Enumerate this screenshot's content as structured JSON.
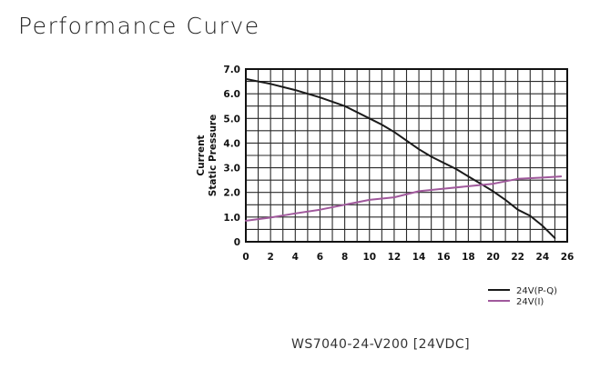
{
  "page_title": "Performance Curve",
  "model_label": "WS7040-24-V200 [24VDC]",
  "chart_data": {
    "type": "line",
    "title": "",
    "xlabel": "",
    "ylabel_lines": [
      "Current",
      "Static Pressure"
    ],
    "xlim": [
      0,
      26
    ],
    "ylim": [
      0,
      7
    ],
    "x_ticks": [
      0,
      2,
      4,
      6,
      8,
      10,
      12,
      14,
      16,
      18,
      20,
      22,
      24,
      26
    ],
    "y_ticks": [
      0,
      1.0,
      2.0,
      3.0,
      4.0,
      5.0,
      6.0,
      7.0
    ],
    "x_tick_labels": [
      "0",
      "2",
      "4",
      "6",
      "8",
      "10",
      "12",
      "14",
      "16",
      "18",
      "20",
      "22",
      "24",
      "26"
    ],
    "y_tick_labels": [
      "0",
      "1.0",
      "2.0",
      "3.0",
      "4.0",
      "5.0",
      "6.0",
      "7.0"
    ],
    "grid": true,
    "legend_position": "bottom-right",
    "series": [
      {
        "name": "24V(P-Q)",
        "color": "#1a1a1a",
        "x": [
          0,
          2,
          4,
          6,
          8,
          10,
          11,
          12,
          13,
          14,
          15,
          16,
          17,
          18,
          19,
          20,
          21,
          22,
          23,
          24,
          25
        ],
        "y": [
          6.6,
          6.4,
          6.15,
          5.85,
          5.5,
          5.0,
          4.75,
          4.45,
          4.1,
          3.75,
          3.45,
          3.2,
          2.95,
          2.65,
          2.35,
          2.05,
          1.7,
          1.3,
          1.05,
          0.65,
          0.15
        ]
      },
      {
        "name": "24V(I)",
        "color": "#a0599c",
        "x": [
          0,
          2,
          4,
          6,
          8,
          10,
          12,
          14,
          16,
          18,
          20,
          22,
          24,
          25.5
        ],
        "y": [
          0.85,
          0.98,
          1.15,
          1.3,
          1.5,
          1.7,
          1.8,
          2.05,
          2.15,
          2.25,
          2.35,
          2.55,
          2.6,
          2.65
        ]
      }
    ]
  }
}
